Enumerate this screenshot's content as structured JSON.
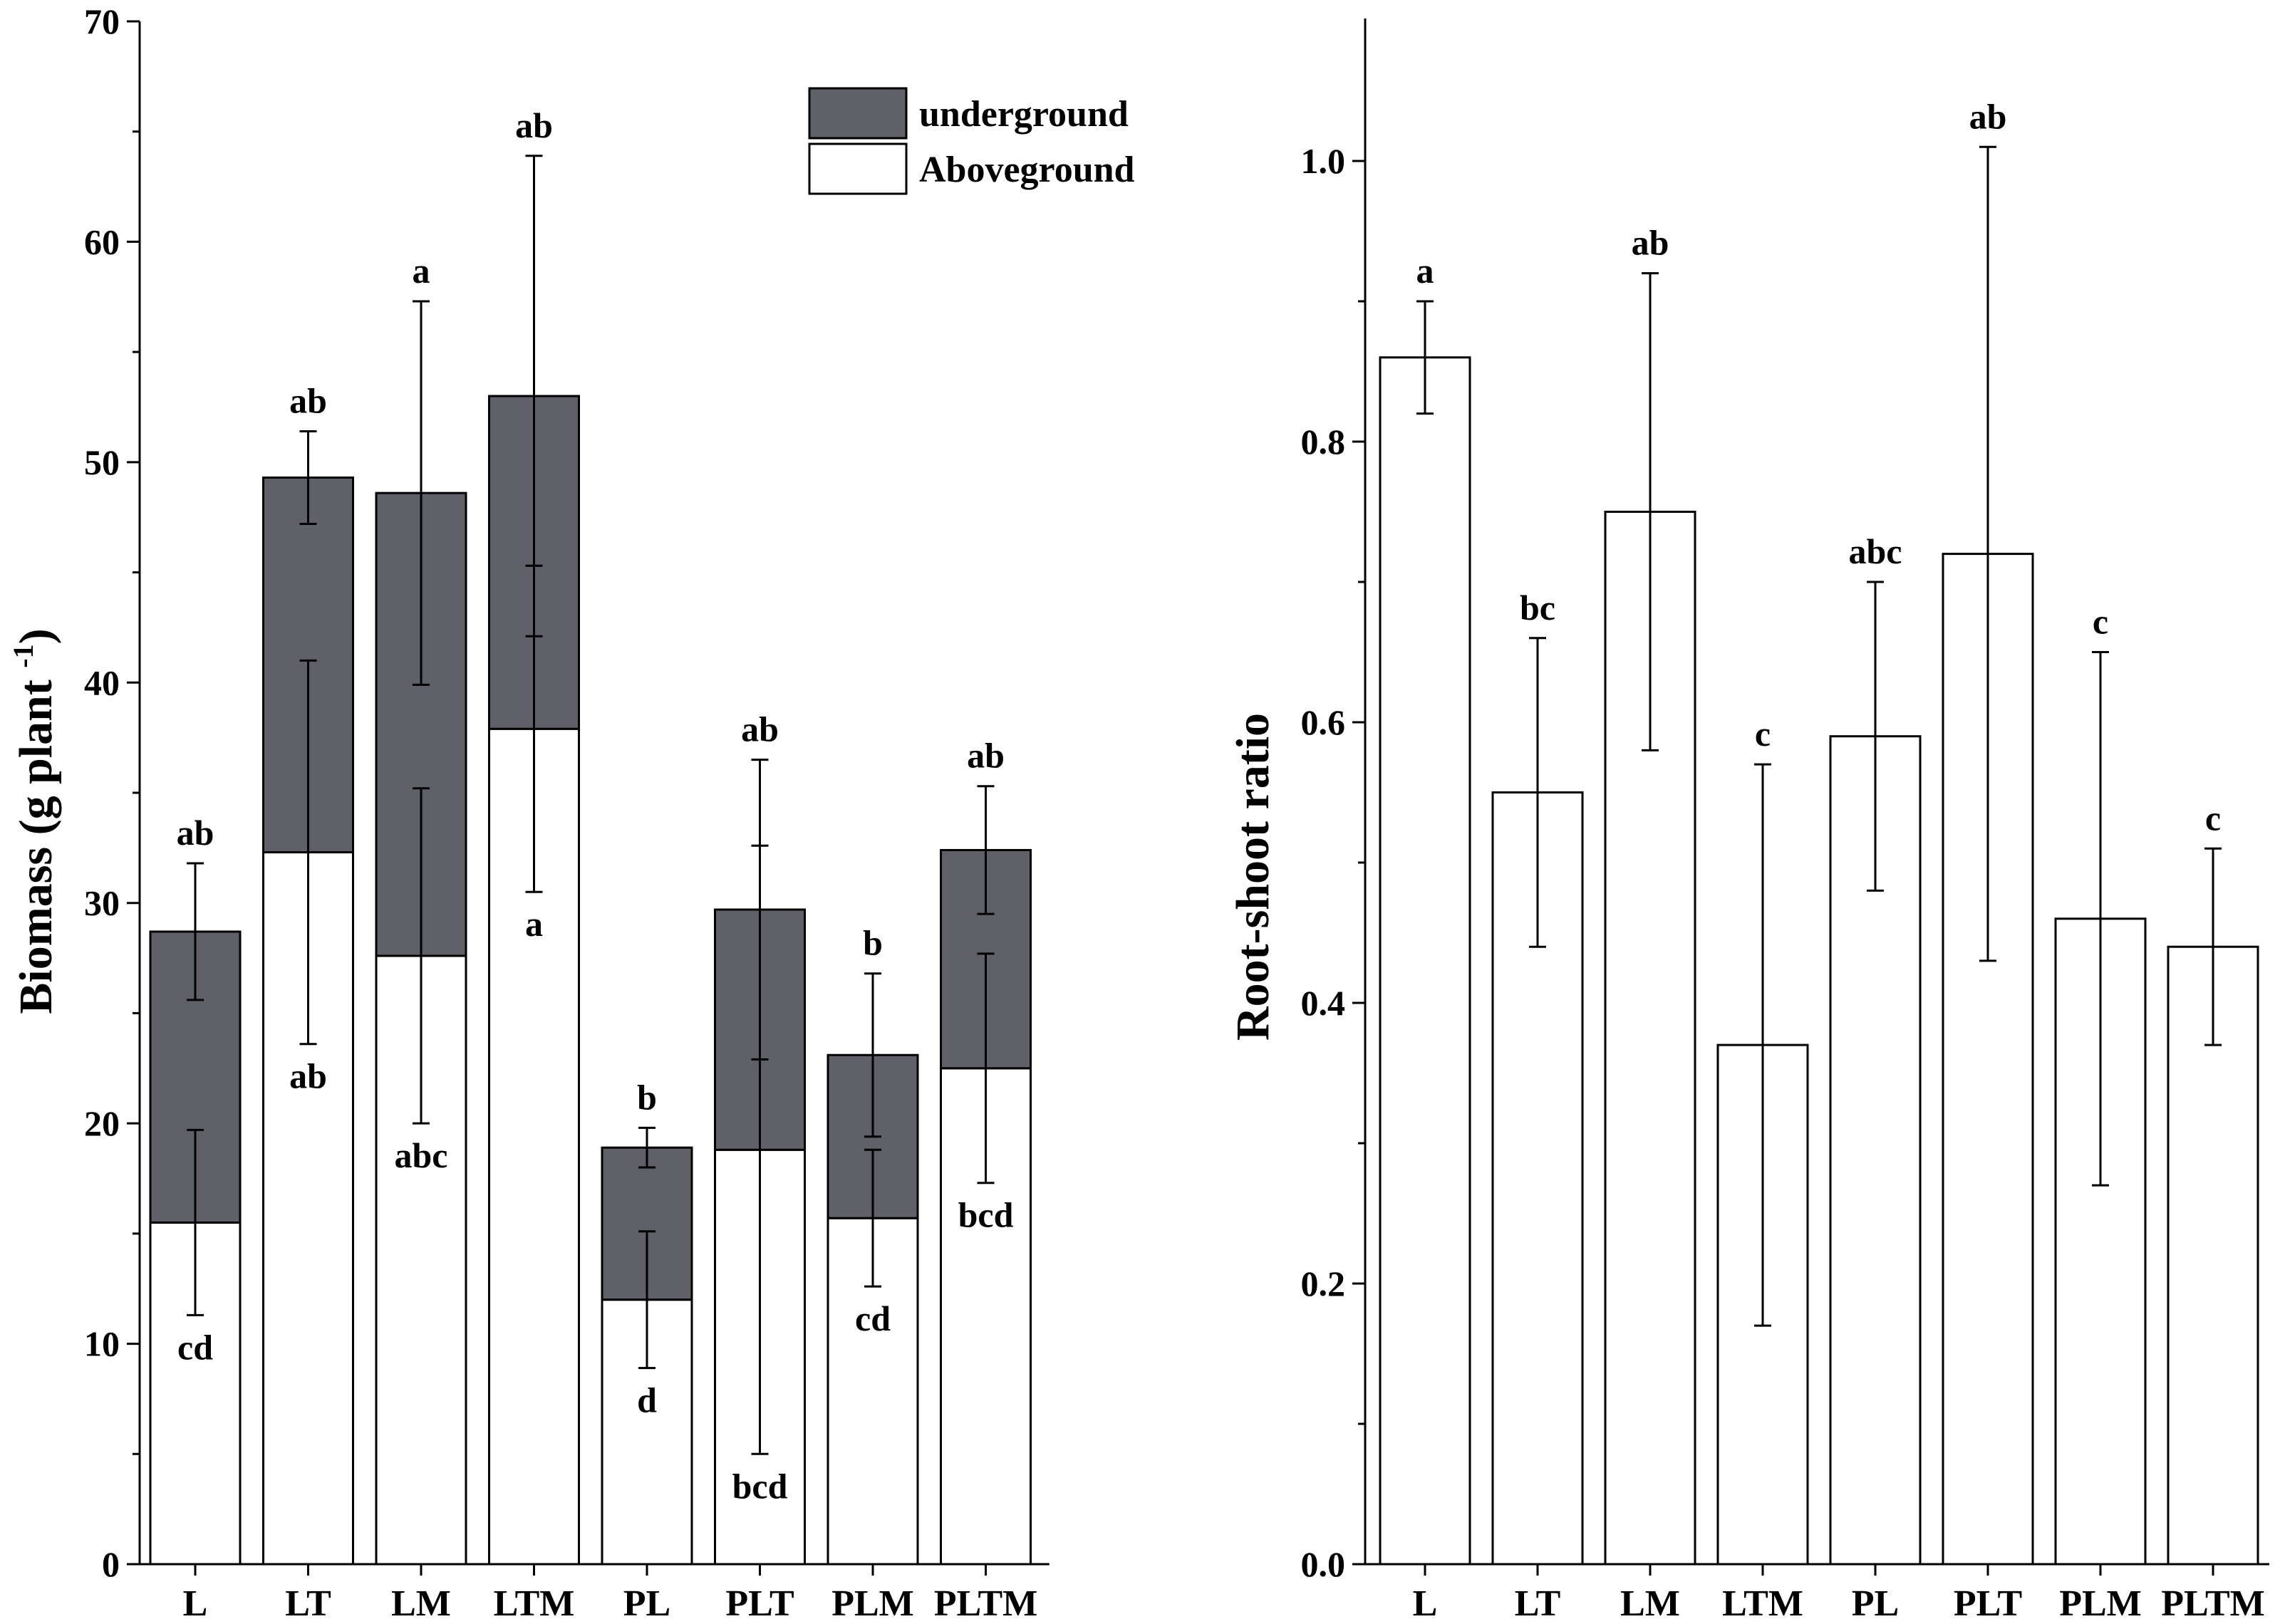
{
  "colors": {
    "underground": "#5f6068",
    "aboveground": "#ffffff",
    "axis": "#000000"
  },
  "chart_data": [
    {
      "type": "bar",
      "stacked": true,
      "panel": "left",
      "categories": [
        "L",
        "LT",
        "LM",
        "LTM",
        "PL",
        "PLT",
        "PLM",
        "PLTM"
      ],
      "ylabel": "Biomass (g plant",
      "ylabel_sup": "-1",
      "ylabel_close": ")",
      "ylim": [
        0,
        70
      ],
      "yticks": [
        0,
        10,
        20,
        30,
        40,
        50,
        60,
        70
      ],
      "ytick_labels": [
        "0",
        "10",
        "20",
        "30",
        "40",
        "50",
        "60",
        "70"
      ],
      "series": [
        {
          "name": "Aboveground",
          "values": [
            15.5,
            32.3,
            27.6,
            37.9,
            12.0,
            18.8,
            15.7,
            22.5
          ],
          "errors": [
            4.2,
            8.7,
            7.6,
            7.4,
            3.1,
            13.8,
            3.1,
            5.2
          ],
          "letters": [
            "cd",
            "ab",
            "abc",
            "a",
            "d",
            "bcd",
            "cd",
            "bcd"
          ]
        },
        {
          "name": "underground",
          "values": [
            13.2,
            17.0,
            21.0,
            15.1,
            6.9,
            10.9,
            7.4,
            9.9
          ],
          "errors": [
            3.1,
            2.1,
            8.7,
            10.9,
            0.9,
            6.8,
            3.7,
            2.9
          ],
          "letters": [
            "ab",
            "ab",
            "a",
            "ab",
            "b",
            "ab",
            "b",
            "ab"
          ]
        }
      ],
      "legend": {
        "position": "top-right",
        "entries": [
          {
            "label": "underground",
            "color": "#5f6068"
          },
          {
            "label": "Aboveground",
            "color": "#ffffff"
          }
        ]
      }
    },
    {
      "type": "bar",
      "panel": "right",
      "categories": [
        "L",
        "LT",
        "LM",
        "LTM",
        "PL",
        "PLT",
        "PLM",
        "PLTM"
      ],
      "ylabel": "Root-shoot ratio",
      "ylim": [
        0,
        1.1
      ],
      "yticks": [
        0,
        0.2,
        0.4,
        0.6,
        0.8,
        1.0
      ],
      "ytick_labels": [
        "0.0",
        "0.2",
        "0.4",
        "0.6",
        "0.8",
        "1.0"
      ],
      "values": [
        0.86,
        0.55,
        0.75,
        0.37,
        0.59,
        0.72,
        0.46,
        0.44
      ],
      "errors": [
        0.04,
        0.11,
        0.17,
        0.2,
        0.11,
        0.29,
        0.19,
        0.07
      ],
      "letters": [
        "a",
        "bc",
        "ab",
        "c",
        "abc",
        "ab",
        "c",
        "c"
      ]
    }
  ]
}
